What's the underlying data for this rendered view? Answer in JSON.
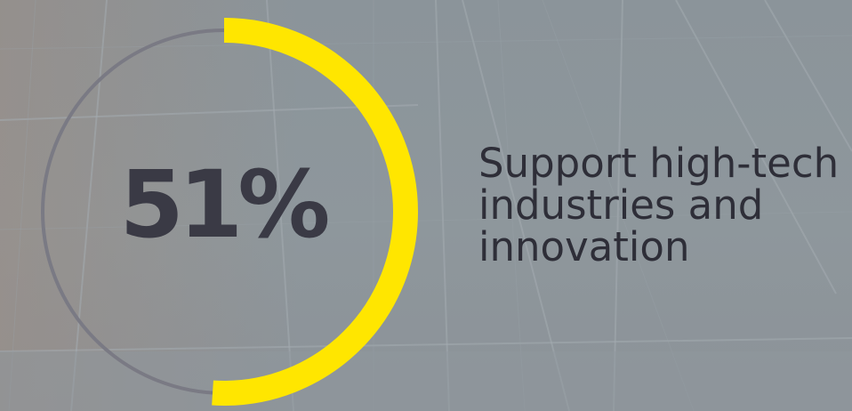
{
  "stat": {
    "percent_label": "51%",
    "percent_value": 51,
    "caption": "Support high-tech industries and innovation"
  },
  "colors": {
    "progress": "#ffe600",
    "track": "#7a7a84",
    "text": "#2e2e38",
    "background": "#8a9399"
  }
}
